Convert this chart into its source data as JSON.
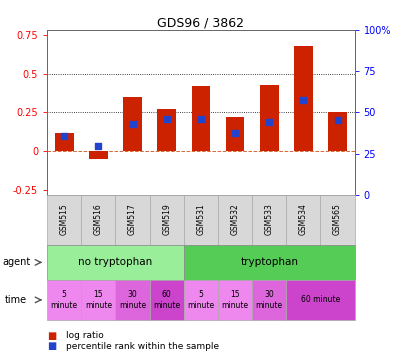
{
  "title": "GDS96 / 3862",
  "samples": [
    "GSM515",
    "GSM516",
    "GSM517",
    "GSM519",
    "GSM531",
    "GSM532",
    "GSM533",
    "GSM534",
    "GSM565"
  ],
  "log_ratio": [
    0.12,
    -0.05,
    0.35,
    0.27,
    0.42,
    0.22,
    0.43,
    0.68,
    0.25
  ],
  "percentile_rank": [
    35.5,
    29.5,
    43.0,
    46.0,
    46.0,
    37.5,
    44.0,
    57.5,
    45.5
  ],
  "bar_color": "#cc2200",
  "dot_color": "#2244cc",
  "ylim_left": [
    -0.28,
    0.78
  ],
  "ylim_right": [
    0,
    100
  ],
  "yticks_left": [
    -0.25,
    0,
    0.25,
    0.5,
    0.75
  ],
  "yticks_right": [
    0,
    25,
    50,
    75,
    100
  ],
  "hlines": [
    0.25,
    0.5
  ],
  "agent_groups": [
    {
      "label": "no tryptophan",
      "start": 0,
      "end": 4,
      "color": "#99ee99"
    },
    {
      "label": "tryptophan",
      "start": 4,
      "end": 9,
      "color": "#55cc55"
    }
  ],
  "time_labels": [
    {
      "label": "5\nminute",
      "start": 0,
      "end": 1,
      "color": "#ee88ee"
    },
    {
      "label": "15\nminute",
      "start": 1,
      "end": 2,
      "color": "#ee88ee"
    },
    {
      "label": "30\nminute",
      "start": 2,
      "end": 3,
      "color": "#dd66dd"
    },
    {
      "label": "60\nminute",
      "start": 3,
      "end": 4,
      "color": "#cc44cc"
    },
    {
      "label": "5\nminute",
      "start": 4,
      "end": 5,
      "color": "#ee88ee"
    },
    {
      "label": "15\nminute",
      "start": 5,
      "end": 6,
      "color": "#ee88ee"
    },
    {
      "label": "30\nminute",
      "start": 6,
      "end": 7,
      "color": "#dd66dd"
    },
    {
      "label": "60 minute",
      "start": 7,
      "end": 9,
      "color": "#cc44cc"
    }
  ],
  "legend_items": [
    {
      "label": "log ratio",
      "color": "#cc2200"
    },
    {
      "label": "percentile rank within the sample",
      "color": "#2244cc"
    }
  ],
  "bg_color": "#ffffff"
}
